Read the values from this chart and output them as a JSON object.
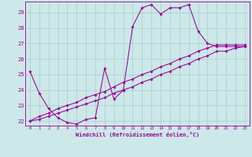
{
  "background_color": "#cce8e8",
  "grid_color": "#aaccaa",
  "line_color": "#990099",
  "marker_color": "#990099",
  "xlabel": "Windchill (Refroidissement éolien,°C)",
  "xlabel_color": "#990099",
  "xlim": [
    -0.5,
    23.5
  ],
  "ylim": [
    21.7,
    29.7
  ],
  "ytick_vals": [
    22,
    23,
    24,
    25,
    26,
    27,
    28,
    29
  ],
  "xtick_vals": [
    0,
    1,
    2,
    3,
    4,
    5,
    6,
    7,
    8,
    9,
    10,
    11,
    12,
    13,
    14,
    15,
    16,
    17,
    18,
    19,
    20,
    21,
    22,
    23
  ],
  "series": [
    {
      "x": [
        0,
        1,
        2,
        3,
        4,
        5,
        6,
        7,
        8,
        9,
        10,
        11,
        12,
        13,
        14,
        15,
        16,
        17,
        18,
        19,
        20,
        21,
        22,
        23
      ],
      "y": [
        25.2,
        23.8,
        22.8,
        22.2,
        21.9,
        21.8,
        22.1,
        22.2,
        25.4,
        23.4,
        24.0,
        28.1,
        29.3,
        29.5,
        28.9,
        29.3,
        29.3,
        29.5,
        27.8,
        27.0,
        26.8,
        26.8,
        26.8,
        26.8
      ]
    },
    {
      "x": [
        0,
        1,
        2,
        3,
        4,
        5,
        6,
        7,
        8,
        9,
        10,
        11,
        12,
        13,
        14,
        15,
        16,
        17,
        18,
        19,
        20,
        21,
        22,
        23
      ],
      "y": [
        22.0,
        22.3,
        22.5,
        22.8,
        23.0,
        23.2,
        23.5,
        23.7,
        23.9,
        24.2,
        24.5,
        24.7,
        25.0,
        25.2,
        25.5,
        25.7,
        26.0,
        26.2,
        26.5,
        26.7,
        26.9,
        26.9,
        26.9,
        26.9
      ]
    },
    {
      "x": [
        0,
        1,
        2,
        3,
        4,
        5,
        6,
        7,
        8,
        9,
        10,
        11,
        12,
        13,
        14,
        15,
        16,
        17,
        18,
        19,
        20,
        21,
        22,
        23
      ],
      "y": [
        22.0,
        22.1,
        22.3,
        22.5,
        22.7,
        22.9,
        23.1,
        23.3,
        23.5,
        23.8,
        24.0,
        24.2,
        24.5,
        24.7,
        25.0,
        25.2,
        25.5,
        25.7,
        26.0,
        26.2,
        26.5,
        26.5,
        26.7,
        26.8
      ]
    }
  ]
}
